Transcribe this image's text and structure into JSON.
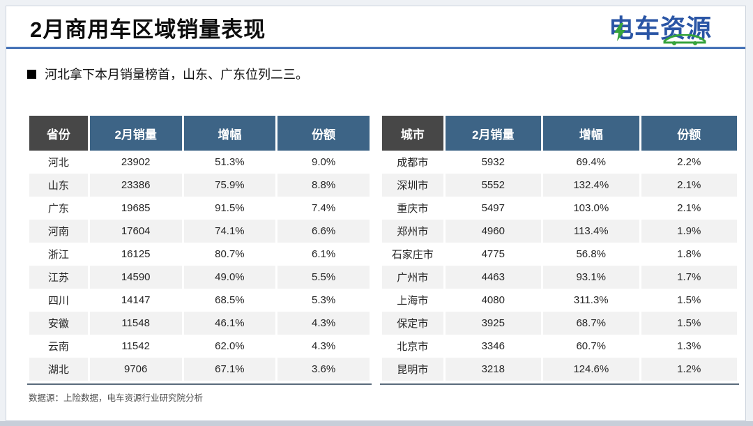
{
  "header": {
    "title": "2月商用车区域销量表现",
    "logo_text": "电车资源"
  },
  "bullet": {
    "text": "河北拿下本月销量榜首，山东、广东位列二三。"
  },
  "left_table": {
    "headers": [
      "省份",
      "2月销量",
      "增幅",
      "份额"
    ],
    "rows": [
      [
        "河北",
        "23902",
        "51.3%",
        "9.0%"
      ],
      [
        "山东",
        "23386",
        "75.9%",
        "8.8%"
      ],
      [
        "广东",
        "19685",
        "91.5%",
        "7.4%"
      ],
      [
        "河南",
        "17604",
        "74.1%",
        "6.6%"
      ],
      [
        "浙江",
        "16125",
        "80.7%",
        "6.1%"
      ],
      [
        "江苏",
        "14590",
        "49.0%",
        "5.5%"
      ],
      [
        "四川",
        "14147",
        "68.5%",
        "5.3%"
      ],
      [
        "安徽",
        "11548",
        "46.1%",
        "4.3%"
      ],
      [
        "云南",
        "11542",
        "62.0%",
        "4.3%"
      ],
      [
        "湖北",
        "9706",
        "67.1%",
        "3.6%"
      ]
    ]
  },
  "right_table": {
    "headers": [
      "城市",
      "2月销量",
      "增幅",
      "份额"
    ],
    "rows": [
      [
        "成都市",
        "5932",
        "69.4%",
        "2.2%"
      ],
      [
        "深圳市",
        "5552",
        "132.4%",
        "2.1%"
      ],
      [
        "重庆市",
        "5497",
        "103.0%",
        "2.1%"
      ],
      [
        "郑州市",
        "4960",
        "113.4%",
        "1.9%"
      ],
      [
        "石家庄市",
        "4775",
        "56.8%",
        "1.8%"
      ],
      [
        "广州市",
        "4463",
        "93.1%",
        "1.7%"
      ],
      [
        "上海市",
        "4080",
        "311.3%",
        "1.5%"
      ],
      [
        "保定市",
        "3925",
        "68.7%",
        "1.5%"
      ],
      [
        "北京市",
        "3346",
        "60.7%",
        "1.3%"
      ],
      [
        "昆明市",
        "3218",
        "124.6%",
        "1.2%"
      ]
    ]
  },
  "footer": {
    "source": "数据源：上险数据，电车资源行业研究院分析"
  },
  "colors": {
    "accent_blue": "#3263ae",
    "header_steel_blue": "#3d6486",
    "header_dark": "#474747",
    "alt_row_gray": "#f2f2f2",
    "logo_blue": "#2a55a5",
    "logo_green": "#36a33c",
    "bottom_bar": "#c7ced9"
  },
  "chart_data": {
    "type": "table",
    "title": "2月商用车区域销量表现",
    "tables": [
      {
        "name": "province",
        "columns": [
          "省份",
          "2月销量",
          "增幅",
          "份额"
        ],
        "rows": [
          [
            "河北",
            23902,
            "51.3%",
            "9.0%"
          ],
          [
            "山东",
            23386,
            "75.9%",
            "8.8%"
          ],
          [
            "广东",
            19685,
            "91.5%",
            "7.4%"
          ],
          [
            "河南",
            17604,
            "74.1%",
            "6.6%"
          ],
          [
            "浙江",
            16125,
            "80.7%",
            "6.1%"
          ],
          [
            "江苏",
            14590,
            "49.0%",
            "5.5%"
          ],
          [
            "四川",
            14147,
            "68.5%",
            "5.3%"
          ],
          [
            "安徽",
            11548,
            "46.1%",
            "4.3%"
          ],
          [
            "云南",
            11542,
            "62.0%",
            "4.3%"
          ],
          [
            "湖北",
            9706,
            "67.1%",
            "3.6%"
          ]
        ]
      },
      {
        "name": "city",
        "columns": [
          "城市",
          "2月销量",
          "增幅",
          "份额"
        ],
        "rows": [
          [
            "成都市",
            5932,
            "69.4%",
            "2.2%"
          ],
          [
            "深圳市",
            5552,
            "132.4%",
            "2.1%"
          ],
          [
            "重庆市",
            5497,
            "103.0%",
            "2.1%"
          ],
          [
            "郑州市",
            4960,
            "113.4%",
            "1.9%"
          ],
          [
            "石家庄市",
            4775,
            "56.8%",
            "1.8%"
          ],
          [
            "广州市",
            4463,
            "93.1%",
            "1.7%"
          ],
          [
            "上海市",
            4080,
            "311.3%",
            "1.5%"
          ],
          [
            "保定市",
            3925,
            "68.7%",
            "1.5%"
          ],
          [
            "北京市",
            3346,
            "60.7%",
            "1.3%"
          ],
          [
            "昆明市",
            3218,
            "124.6%",
            "1.2%"
          ]
        ]
      }
    ]
  }
}
